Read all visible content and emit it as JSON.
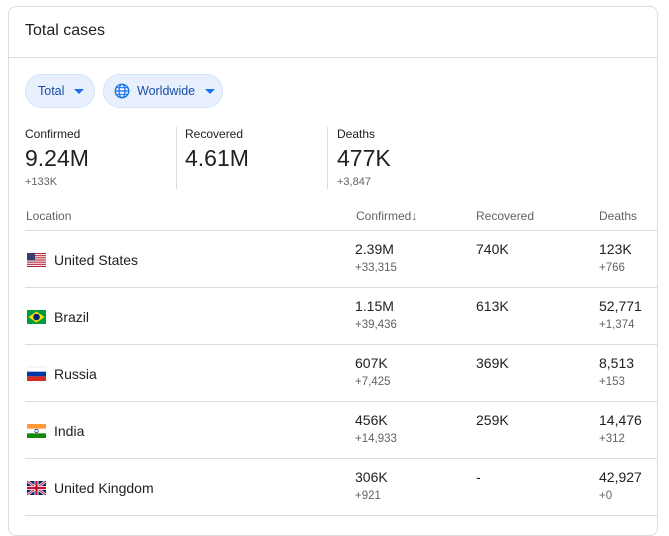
{
  "card_title": "Total cases",
  "filters": {
    "total_label": "Total",
    "region_label": "Worldwide"
  },
  "summary": {
    "confirmed": {
      "label": "Confirmed",
      "value": "9.24M",
      "delta": "+133K"
    },
    "recovered": {
      "label": "Recovered",
      "value": "4.61M",
      "delta": ""
    },
    "deaths": {
      "label": "Deaths",
      "value": "477K",
      "delta": "+3,847"
    }
  },
  "table": {
    "headers": {
      "location": "Location",
      "confirmed": "Confirmed",
      "sort_arrow": "↓",
      "recovered": "Recovered",
      "deaths": "Deaths"
    },
    "rows": [
      {
        "country": "United States",
        "flag": "us-flag",
        "confirmed": "2.39M",
        "confirmed_delta": "+33,315",
        "recovered": "740K",
        "deaths": "123K",
        "deaths_delta": "+766"
      },
      {
        "country": "Brazil",
        "flag": "brazil-flag",
        "confirmed": "1.15M",
        "confirmed_delta": "+39,436",
        "recovered": "613K",
        "deaths": "52,771",
        "deaths_delta": "+1,374"
      },
      {
        "country": "Russia",
        "flag": "russia-flag",
        "confirmed": "607K",
        "confirmed_delta": "+7,425",
        "recovered": "369K",
        "deaths": "8,513",
        "deaths_delta": "+153"
      },
      {
        "country": "India",
        "flag": "india-flag",
        "confirmed": "456K",
        "confirmed_delta": "+14,933",
        "recovered": "259K",
        "deaths": "14,476",
        "deaths_delta": "+312"
      },
      {
        "country": "United Kingdom",
        "flag": "uk-flag",
        "confirmed": "306K",
        "confirmed_delta": "+921",
        "recovered": "-",
        "deaths": "42,927",
        "deaths_delta": "+0"
      }
    ]
  },
  "colors": {
    "chip_bg": "#e8f0fe",
    "chip_text": "#174ea6",
    "accent": "#1a73e8",
    "border": "#dadce0",
    "muted": "#5f6368"
  }
}
